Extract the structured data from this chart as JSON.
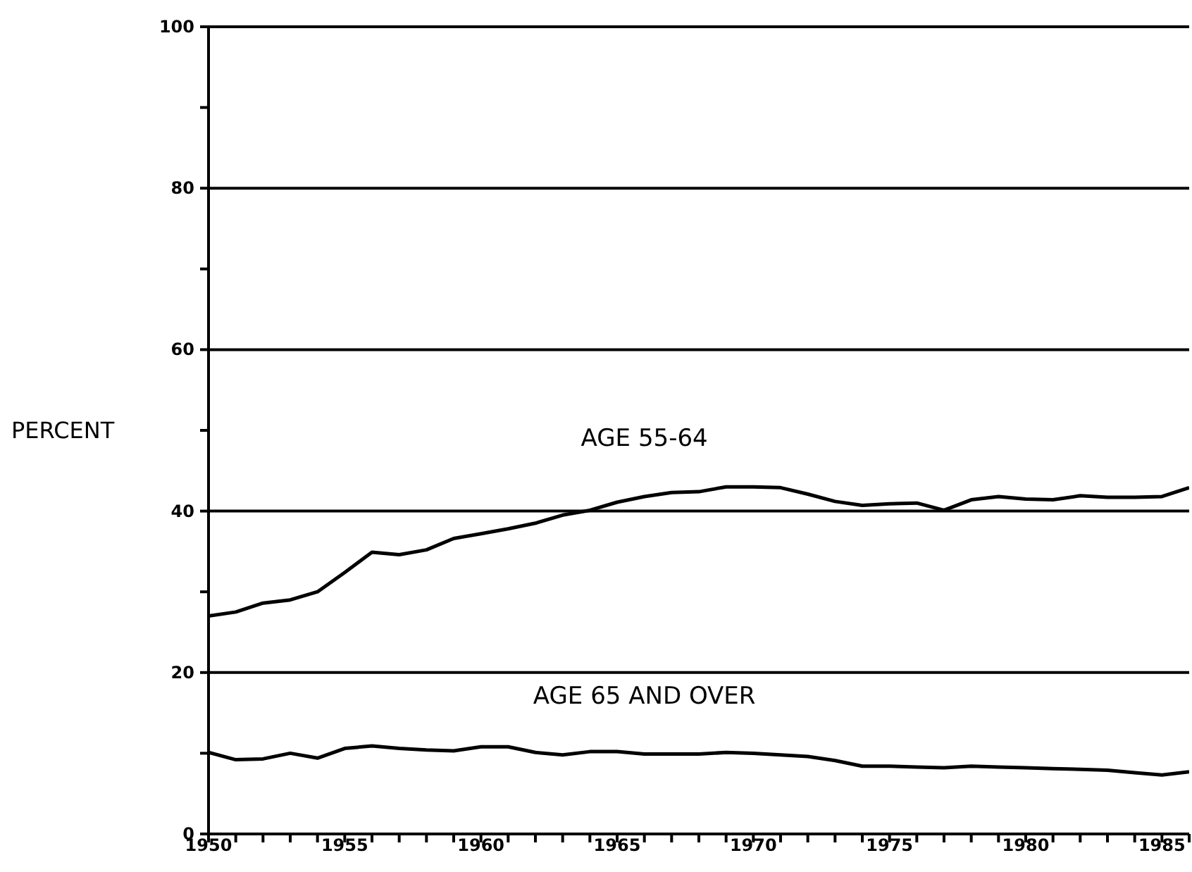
{
  "chart_data": {
    "type": "line",
    "ylabel": "PERCENT",
    "x": [
      1950,
      1951,
      1952,
      1953,
      1954,
      1955,
      1956,
      1957,
      1958,
      1959,
      1960,
      1961,
      1962,
      1963,
      1964,
      1965,
      1966,
      1967,
      1968,
      1969,
      1970,
      1971,
      1972,
      1973,
      1974,
      1975,
      1976,
      1977,
      1978,
      1979,
      1980,
      1981,
      1982,
      1983,
      1984,
      1985,
      1986
    ],
    "series": [
      {
        "name": "AGE 55-64",
        "color": "#000000",
        "values": [
          27,
          27.5,
          28.6,
          29,
          30,
          32.4,
          34.9,
          34.6,
          35.2,
          36.6,
          37.2,
          37.8,
          38.5,
          39.5,
          40.1,
          41.1,
          41.8,
          42.3,
          42.4,
          43,
          43,
          42.9,
          42.1,
          41.2,
          40.7,
          40.9,
          41,
          40.1,
          41.4,
          41.8,
          41.5,
          41.4,
          41.9,
          41.7,
          41.7,
          41.8,
          42.9
        ]
      },
      {
        "name": "AGE 65 AND OVER",
        "color": "#000000",
        "values": [
          10.1,
          9.2,
          9.3,
          10,
          9.4,
          10.6,
          10.9,
          10.6,
          10.4,
          10.3,
          10.8,
          10.8,
          10.1,
          9.8,
          10.2,
          10.2,
          9.9,
          9.9,
          9.9,
          10.1,
          10,
          9.8,
          9.6,
          9.1,
          8.4,
          8.4,
          8.3,
          8.2,
          8.4,
          8.3,
          8.2,
          8.1,
          8,
          7.9,
          7.6,
          7.3,
          7.7
        ]
      }
    ],
    "xlim": [
      1950,
      1986
    ],
    "xticks": [
      1950,
      {
        "value": 1951,
        "label": null
      },
      {
        "value": 1952,
        "label": null
      },
      {
        "value": 1953,
        "label": null
      },
      {
        "value": 1954,
        "label": null
      },
      1955,
      {
        "value": 1956,
        "label": null
      },
      {
        "value": 1957,
        "label": null
      },
      {
        "value": 1958,
        "label": null
      },
      {
        "value": 1959,
        "label": null
      },
      1960,
      {
        "value": 1961,
        "label": null
      },
      {
        "value": 1962,
        "label": null
      },
      {
        "value": 1963,
        "label": null
      },
      {
        "value": 1964,
        "label": null
      },
      1965,
      {
        "value": 1966,
        "label": null
      },
      {
        "value": 1967,
        "label": null
      },
      {
        "value": 1968,
        "label": null
      },
      {
        "value": 1969,
        "label": null
      },
      1970,
      {
        "value": 1971,
        "label": null
      },
      {
        "value": 1972,
        "label": null
      },
      {
        "value": 1973,
        "label": null
      },
      {
        "value": 1974,
        "label": null
      },
      1975,
      {
        "value": 1976,
        "label": null
      },
      {
        "value": 1977,
        "label": null
      },
      {
        "value": 1978,
        "label": null
      },
      {
        "value": 1979,
        "label": null
      },
      1980,
      {
        "value": 1981,
        "label": null
      },
      {
        "value": 1982,
        "label": null
      },
      {
        "value": 1983,
        "label": null
      },
      {
        "value": 1984,
        "label": null
      },
      1985,
      {
        "value": 1986,
        "label": null
      }
    ],
    "ylim": [
      0,
      100
    ],
    "yticks": [
      0,
      {
        "value": 10,
        "label": null
      },
      20,
      {
        "value": 30,
        "label": null
      },
      40,
      {
        "value": 50,
        "label": null
      },
      60,
      {
        "value": 70,
        "label": null
      },
      80,
      {
        "value": 90,
        "label": null
      },
      100
    ],
    "grid": "y",
    "legend": false,
    "marker": "none",
    "line_style": "solid"
  }
}
